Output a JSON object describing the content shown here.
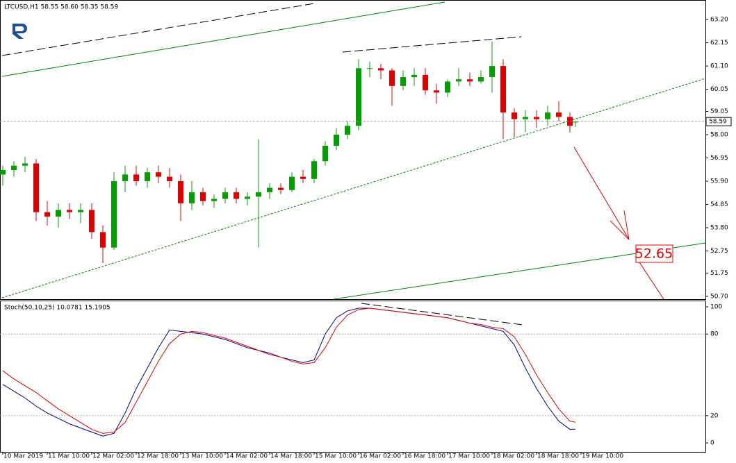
{
  "chart_data": [
    {
      "type": "candlestick",
      "title": "LTCUSD,H1 58.55 58.60 58.35 58.59",
      "x": [
        0,
        4,
        8,
        12,
        16,
        20,
        24,
        28,
        32,
        36,
        40,
        44,
        48,
        52,
        56,
        60,
        64,
        68,
        72,
        76,
        80,
        84,
        88,
        92,
        96,
        100,
        104,
        108,
        112,
        116,
        120,
        124,
        128,
        132,
        136,
        140,
        144,
        148,
        152,
        156,
        160,
        164,
        168,
        172,
        176,
        180,
        184,
        188,
        192,
        196,
        200,
        204,
        206
      ],
      "open": [
        56.2,
        56.4,
        56.6,
        56.7,
        54.5,
        54.3,
        54.6,
        54.5,
        54.6,
        53.6,
        52.9,
        55.9,
        56.2,
        55.9,
        56.3,
        56.1,
        55.9,
        54.9,
        55.4,
        55.0,
        55.1,
        55.4,
        55.1,
        55.2,
        55.4,
        55.6,
        55.5,
        56.1,
        56.0,
        56.8,
        57.5,
        58.0,
        58.4,
        61.0,
        61.0,
        60.9,
        60.2,
        60.6,
        60.7,
        60.0,
        59.9,
        60.4,
        60.5,
        60.4,
        60.6,
        61.1,
        59.0,
        58.7,
        58.8,
        58.7,
        59.0,
        58.8,
        58.55
      ],
      "high": [
        56.6,
        56.8,
        57.0,
        56.9,
        55.0,
        54.9,
        54.9,
        54.9,
        54.9,
        53.9,
        56.3,
        56.6,
        56.6,
        56.5,
        56.6,
        56.5,
        56.2,
        55.9,
        55.6,
        55.3,
        55.6,
        55.6,
        55.4,
        57.8,
        55.8,
        55.8,
        56.3,
        56.4,
        56.9,
        57.7,
        58.3,
        58.6,
        61.4,
        61.3,
        61.2,
        61.0,
        60.9,
        61.0,
        61.0,
        60.3,
        60.5,
        61.0,
        60.8,
        60.9,
        62.2,
        61.4,
        59.2,
        59.1,
        59.1,
        59.3,
        59.5,
        59.0,
        58.6
      ],
      "low": [
        55.7,
        56.1,
        56.3,
        54.1,
        53.9,
        53.8,
        54.2,
        54.0,
        53.3,
        52.2,
        52.8,
        55.4,
        55.7,
        55.6,
        55.8,
        55.6,
        54.1,
        54.6,
        54.8,
        54.7,
        54.9,
        54.9,
        54.8,
        52.9,
        55.1,
        55.3,
        55.4,
        55.8,
        55.8,
        56.6,
        57.3,
        57.8,
        58.2,
        60.6,
        60.5,
        59.3,
        60.0,
        60.2,
        59.8,
        59.4,
        59.7,
        60.2,
        60.2,
        60.3,
        59.9,
        57.8,
        57.9,
        58.1,
        58.3,
        58.4,
        58.6,
        58.1,
        58.35
      ],
      "close": [
        56.4,
        56.6,
        56.7,
        54.5,
        54.3,
        54.6,
        54.5,
        54.6,
        53.6,
        52.9,
        55.9,
        56.2,
        55.9,
        56.3,
        56.1,
        55.9,
        54.9,
        55.4,
        55.0,
        55.1,
        55.4,
        55.1,
        55.2,
        55.4,
        55.6,
        55.5,
        56.1,
        56.0,
        56.8,
        57.5,
        58.0,
        58.4,
        61.0,
        61.0,
        60.9,
        60.2,
        60.6,
        60.7,
        60.0,
        59.9,
        60.4,
        60.5,
        60.4,
        60.6,
        61.1,
        59.0,
        58.7,
        58.8,
        58.7,
        59.0,
        58.8,
        58.4,
        58.59
      ],
      "up_color": "#00a000",
      "down_color": "#e00000",
      "current_price": 58.59,
      "annotation": "52.65",
      "xlim": [
        -1,
        252.75
      ],
      "ylim": [
        50.57,
        64.05
      ],
      "yticks": [
        {
          "value": 63.2,
          "label": "63.20"
        },
        62.15,
        {
          "value": 61.1,
          "label": "61.10"
        },
        60.05,
        59.05,
        {
          "value": 58.0,
          "label": "58.00"
        },
        56.95,
        {
          "value": 55.9,
          "label": "55.90"
        },
        54.85,
        {
          "value": 53.8,
          "label": "53.80"
        },
        52.75,
        51.75,
        {
          "value": 50.7,
          "label": "50.70"
        }
      ]
    },
    {
      "type": "line",
      "title": "Stoch(50,10,25) 10.0781 15.1905",
      "x": [
        0,
        4,
        8,
        12,
        16,
        20,
        24,
        28,
        32,
        36,
        40,
        44,
        48,
        52,
        56,
        60,
        64,
        68,
        72,
        76,
        80,
        84,
        88,
        92,
        96,
        100,
        104,
        108,
        112,
        116,
        120,
        124,
        128,
        132,
        136,
        140,
        144,
        148,
        152,
        156,
        160,
        164,
        168,
        172,
        176,
        180,
        184,
        188,
        192,
        196,
        200,
        204,
        206
      ],
      "series": [
        {
          "color": "#000080",
          "values": [
            43,
            38,
            33,
            27,
            22,
            18,
            14,
            11,
            8,
            5,
            7,
            22,
            40,
            55,
            70,
            83,
            82,
            81,
            80,
            78,
            76,
            73,
            70,
            68,
            66,
            63,
            61,
            59,
            61,
            80,
            92,
            97,
            99,
            99,
            98,
            97,
            96,
            95,
            94,
            93,
            92,
            90,
            88,
            86,
            84,
            82,
            72,
            55,
            40,
            27,
            16,
            10,
            10.0781
          ]
        },
        {
          "color": "#e00000",
          "values": [
            53,
            47,
            42,
            37,
            31,
            25,
            20,
            15,
            10,
            7,
            8,
            15,
            30,
            45,
            60,
            73,
            80,
            82,
            81,
            79,
            77,
            74,
            71,
            68,
            65,
            63,
            60,
            58,
            59,
            70,
            85,
            94,
            98,
            99,
            98,
            97,
            96,
            95,
            94,
            93,
            92,
            90,
            88,
            87,
            85,
            84,
            78,
            65,
            50,
            37,
            25,
            16,
            15.1905
          ]
        }
      ],
      "xlim": [
        -1,
        252.75
      ],
      "ylim": [
        -6.6,
        104.1
      ],
      "yticks": [
        100,
        80,
        20,
        0
      ],
      "levels": [
        80,
        20
      ],
      "xticks": [
        {
          "value": 0,
          "label": "10 Mar 2019"
        },
        {
          "value": 16,
          "label": "11 Mar 10:00"
        },
        {
          "value": 32,
          "label": "12 Mar 02:00"
        },
        {
          "value": 48,
          "label": "12 Mar 18:00"
        },
        {
          "value": 64,
          "label": "13 Mar 10:00"
        },
        {
          "value": 80,
          "label": "14 Mar 02:00"
        },
        {
          "value": 96,
          "label": "14 Mar 18:00"
        },
        {
          "value": 112,
          "label": "15 Mar 10:00"
        },
        {
          "value": 128,
          "label": "16 Mar 02:00"
        },
        {
          "value": 144,
          "label": "16 Mar 18:00"
        },
        {
          "value": 160,
          "label": "17 Mar 10:00"
        },
        {
          "value": 176,
          "label": "18 Mar 02:00"
        },
        {
          "value": 192,
          "label": "18 Mar 18:00"
        },
        {
          "value": 208,
          "label": "19 Mar 10:00"
        }
      ]
    }
  ]
}
